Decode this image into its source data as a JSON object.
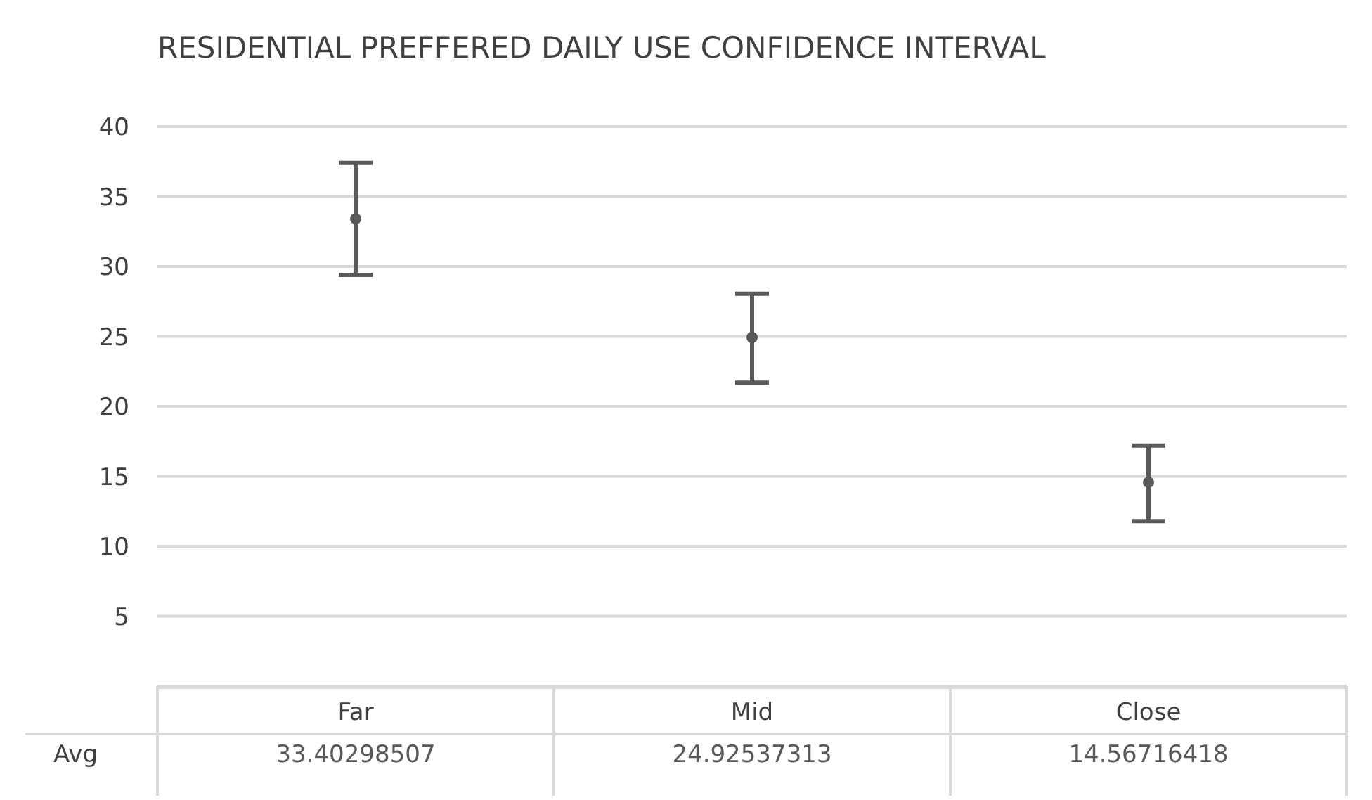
{
  "chart_data": {
    "type": "scatter",
    "title": "RESIDENTIAL PREFFERED DAILY USE CONFIDENCE INTERVAL",
    "categories": [
      "Far",
      "Mid",
      "Close"
    ],
    "series": [
      {
        "name": "Avg",
        "color": "#595959",
        "values": [
          33.40298507,
          24.92537313,
          14.56716418
        ],
        "errors": [
          [
            29.4,
            37.4
          ],
          [
            21.7,
            28.05
          ],
          [
            11.8,
            17.2
          ]
        ]
      }
    ],
    "marker": "circle",
    "data_labels": true,
    "grid": "y",
    "ylim": [
      0,
      40
    ],
    "yticks": [
      5,
      10,
      15,
      20,
      25,
      30,
      35,
      40
    ]
  }
}
